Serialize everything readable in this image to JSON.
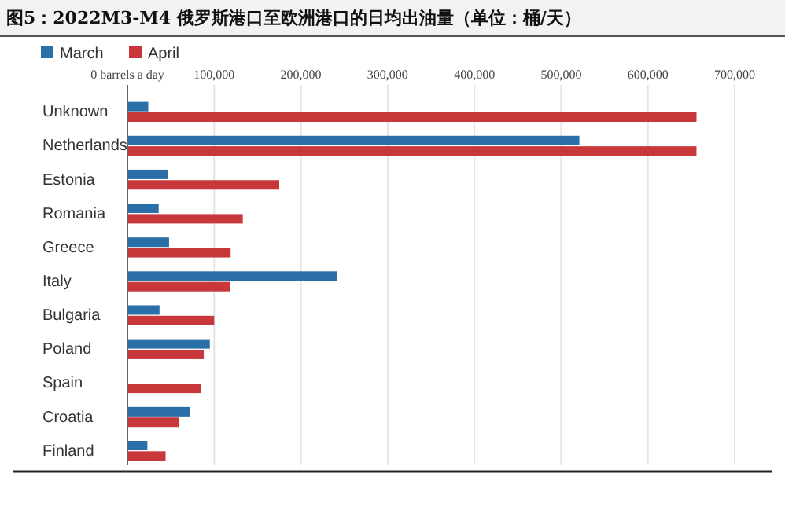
{
  "chart_data": {
    "type": "bar",
    "orientation": "horizontal",
    "title": "图5：2022M3-M4 俄罗斯港口至欧洲港口的日均出油量（单位：桶/天）",
    "categories": [
      "Unknown",
      "Netherlands",
      "Estonia",
      "Romania",
      "Greece",
      "Italy",
      "Bulgaria",
      "Poland",
      "Spain",
      "Croatia",
      "Finland"
    ],
    "series": [
      {
        "name": "March",
        "color": "#2a6fa8",
        "values": [
          24000,
          521000,
          47000,
          36000,
          48000,
          242000,
          37000,
          95000,
          null,
          72000,
          23000
        ]
      },
      {
        "name": "April",
        "color": "#c8373a",
        "values": [
          656000,
          656000,
          175000,
          133000,
          119000,
          118000,
          100000,
          88000,
          85000,
          59000,
          44000
        ]
      }
    ],
    "xlim": [
      0,
      700000
    ],
    "xticks": [
      {
        "value": 0,
        "label": "0 barrels a day"
      },
      {
        "value": 100000,
        "label": "100,000"
      },
      {
        "value": 200000,
        "label": "200,000"
      },
      {
        "value": 300000,
        "label": "300,000"
      },
      {
        "value": 400000,
        "label": "400,000"
      },
      {
        "value": 500000,
        "label": "500,000"
      },
      {
        "value": 600000,
        "label": "600,000"
      },
      {
        "value": 700000,
        "label": "700,000"
      }
    ],
    "grid": "x",
    "legend": "top left"
  }
}
